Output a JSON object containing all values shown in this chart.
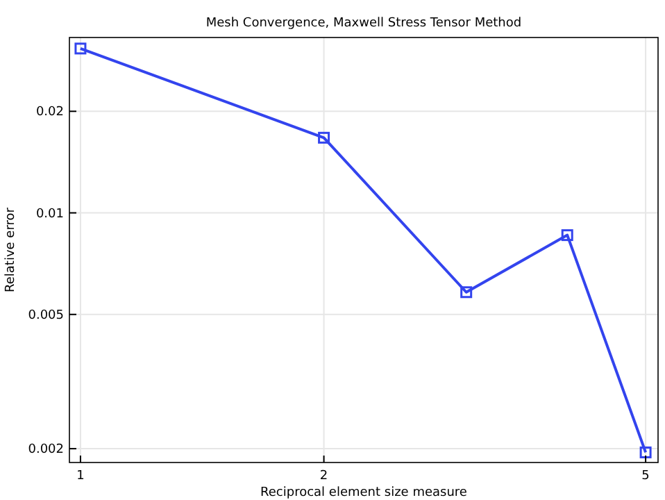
{
  "chart_data": {
    "type": "line",
    "title": "Mesh Convergence, Maxwell Stress Tensor Method",
    "xlabel": "Reciprocal element size measure",
    "ylabel": "Relative error",
    "log": "xy",
    "x": [
      1,
      2,
      3,
      4,
      5
    ],
    "series": [
      {
        "color": "#3344ee",
        "values": [
          0.0307,
          0.0167,
          0.00582,
          0.00859,
          0.00195
        ]
      }
    ],
    "xlim": [
      0.969,
      5.18
    ],
    "ylim": [
      0.00182,
      0.0331
    ],
    "xticks": [
      1,
      2,
      5
    ],
    "yticks": [
      0.002,
      0.005,
      0.01,
      0.02
    ],
    "grid": true,
    "marker": "square",
    "line_style": "solid"
  }
}
